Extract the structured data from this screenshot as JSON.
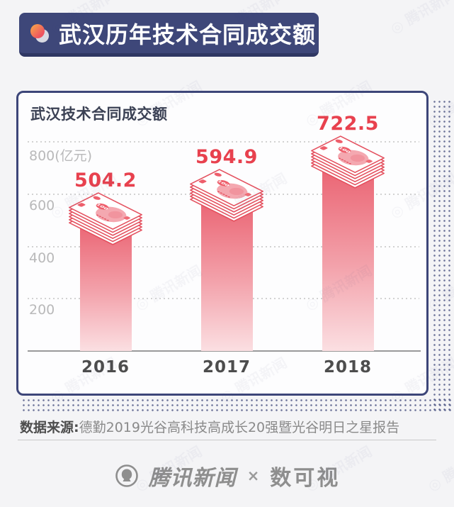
{
  "header": {
    "title": "武汉历年技术合同成交额"
  },
  "chart_data": {
    "type": "bar",
    "title": "武汉技术合同成交额",
    "categories": [
      "2016",
      "2017",
      "2018"
    ],
    "values": [
      504.2,
      594.9,
      722.5
    ],
    "ylabel": "亿元",
    "ylim": [
      0,
      800
    ],
    "yticks": [
      {
        "value": 800,
        "label": "800(亿元)"
      },
      {
        "value": 600,
        "label": "600"
      },
      {
        "value": 400,
        "label": "400"
      },
      {
        "value": 200,
        "label": "200"
      }
    ],
    "grid": "dotted-horizontal",
    "legend": "none",
    "bar_style": "red gradient column topped with isometric stack of 100-yuan banknotes, value label above each stack"
  },
  "source": {
    "prefix": "数据来源:",
    "text": "德勤2019光谷高科技高成长20强暨光谷明日之星报告"
  },
  "footer": {
    "brand_left": "腾讯新闻",
    "separator": "×",
    "brand_right": "数可视"
  },
  "watermark": {
    "text": "腾讯新闻",
    "icon": "circle-logo"
  },
  "colors": {
    "navy": "#3d4679",
    "value_red": "#e8414e",
    "bar_top": "#ea6170",
    "bar_bottom": "#fbdfe2",
    "note_red": "#e4515f",
    "background": "#f4f4f6"
  }
}
